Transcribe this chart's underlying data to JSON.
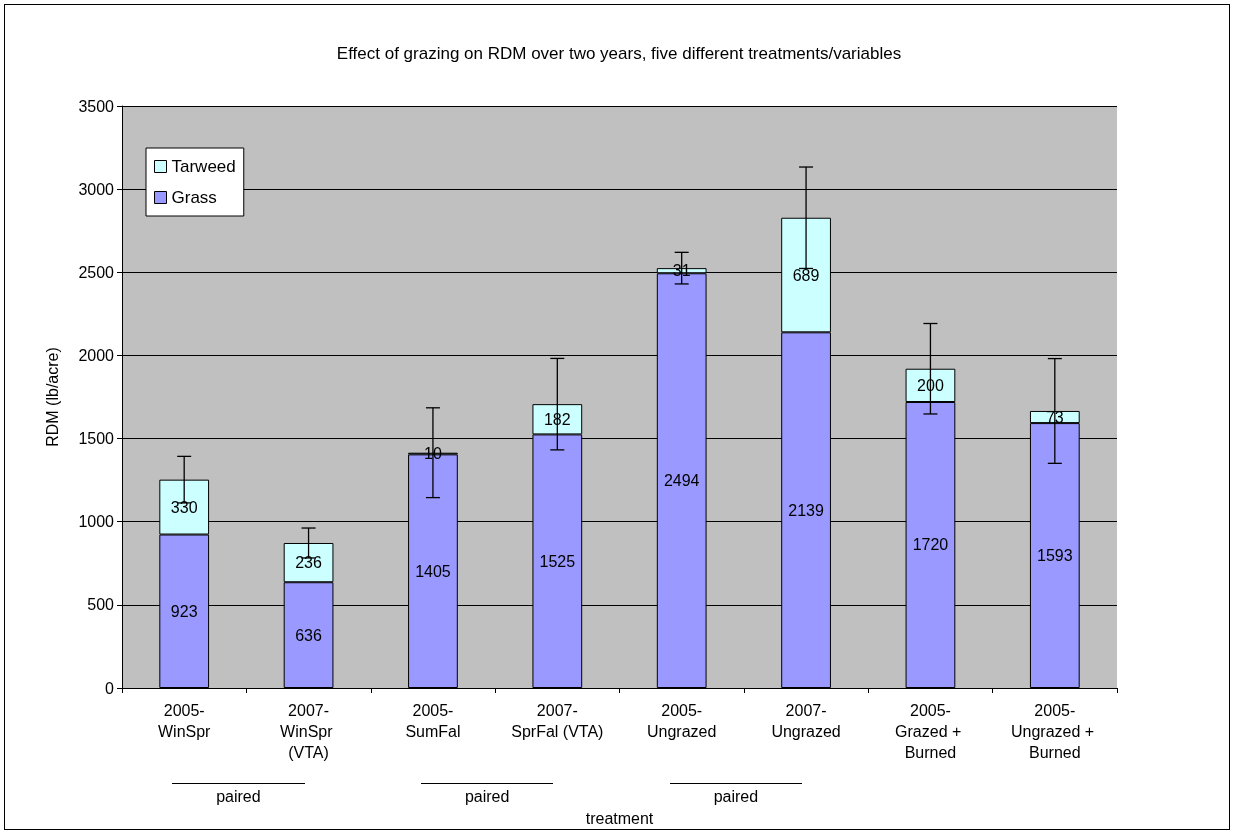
{
  "chart_data": {
    "type": "bar",
    "title": "Effect of grazing on RDM over two years, five different treatments/variables",
    "xlabel": "treatment",
    "ylabel": "RDM (lb/acre)",
    "categories": [
      "2005-WinSpr",
      "2007-WinSpr (VTA)",
      "2005-SumFal",
      "2007-SprFal (VTA)",
      "2005-Ungrazed",
      "2007-Ungrazed",
      "2005-Grazed + Burned",
      "2005-Ungrazed + Burned"
    ],
    "series": [
      {
        "name": "Grass",
        "color": "#9999ff",
        "values": [
          923,
          636,
          1405,
          1525,
          2494,
          2139,
          1720,
          1593
        ]
      },
      {
        "name": "Tarweed",
        "color": "#ccffff",
        "values": [
          330,
          236,
          10,
          182,
          31,
          689,
          200,
          73
        ],
        "errors": [
          140,
          90,
          270,
          275,
          95,
          305,
          272,
          315
        ]
      }
    ],
    "stacked": true,
    "data_labels": true,
    "ylim": [
      0,
      3500
    ],
    "yticks": [
      0,
      500,
      1000,
      1500,
      2000,
      2500,
      3000,
      3500
    ],
    "grid": "y",
    "legend": "top left",
    "annotations": [
      "paired",
      "paired",
      "paired"
    ]
  }
}
